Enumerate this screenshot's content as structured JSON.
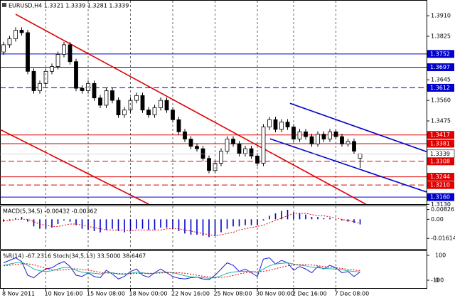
{
  "chart_data": [
    {
      "type": "candlestick",
      "title": "EURUSD,H4  1.3321 1.3339 1.3281 1.3339",
      "categories": [
        "8 Nov 2011",
        null,
        null,
        null,
        null,
        null,
        null,
        "10 Nov 16:00",
        null,
        null,
        null,
        null,
        null,
        null,
        "15 Nov 08:00",
        null,
        null,
        null,
        null,
        null,
        null,
        "18 Nov 00:00",
        null,
        null,
        null,
        null,
        null,
        null,
        "22 Nov 16:00",
        null,
        null,
        null,
        null,
        null,
        null,
        "25 Nov 08:00",
        null,
        null,
        null,
        null,
        null,
        null,
        "30 Nov 00:00",
        null,
        null,
        null,
        null,
        null,
        "2 Dec 16:00",
        null,
        null,
        null,
        null,
        null,
        null,
        "7 Dec 08:00",
        null,
        null,
        null,
        null
      ],
      "open": [
        1.376,
        1.379,
        1.3815,
        1.385,
        1.384,
        1.368,
        1.36,
        1.363,
        1.368,
        1.37,
        1.375,
        1.379,
        1.372,
        1.361,
        1.36,
        1.363,
        1.357,
        1.354,
        1.36,
        1.356,
        1.35,
        1.352,
        1.356,
        1.358,
        1.352,
        1.35,
        1.353,
        1.356,
        1.352,
        1.348,
        1.343,
        1.34,
        1.337,
        1.336,
        1.332,
        1.327,
        1.33,
        1.335,
        1.34,
        1.338,
        1.334,
        1.336,
        1.333,
        1.33,
        1.345,
        1.348,
        1.344,
        1.347,
        1.345,
        1.34,
        1.343,
        1.341,
        1.338,
        1.342,
        1.34,
        1.343,
        1.341,
        1.338,
        1.339,
        1.3321
      ],
      "high": [
        1.3802,
        1.3827,
        1.3862,
        1.3862,
        1.3852,
        1.3692,
        1.3642,
        1.3692,
        1.3712,
        1.3762,
        1.3802,
        1.3802,
        1.3732,
        1.3622,
        1.3642,
        1.3642,
        1.3582,
        1.3612,
        1.3612,
        1.3572,
        1.3532,
        1.3572,
        1.3592,
        1.3592,
        1.3532,
        1.3542,
        1.3572,
        1.3572,
        1.3532,
        1.3492,
        1.3442,
        1.3412,
        1.3382,
        1.3372,
        1.3332,
        1.3312,
        1.3362,
        1.3412,
        1.3412,
        1.3392,
        1.3372,
        1.3372,
        1.3342,
        1.3462,
        1.3492,
        1.3492,
        1.3482,
        1.3482,
        1.3462,
        1.3442,
        1.3442,
        1.3422,
        1.3432,
        1.3432,
        1.3442,
        1.3442,
        1.3422,
        1.3402,
        1.3402,
        1.3339
      ],
      "low": [
        1.3748,
        1.3778,
        1.3803,
        1.3828,
        1.3668,
        1.3588,
        1.3588,
        1.3618,
        1.3668,
        1.3688,
        1.3738,
        1.3708,
        1.3598,
        1.3588,
        1.3588,
        1.3558,
        1.3528,
        1.3528,
        1.3548,
        1.3488,
        1.3488,
        1.3508,
        1.3548,
        1.3508,
        1.3488,
        1.3488,
        1.3518,
        1.3508,
        1.3468,
        1.3418,
        1.3388,
        1.3358,
        1.3348,
        1.3308,
        1.3258,
        1.3258,
        1.3288,
        1.3338,
        1.3368,
        1.3328,
        1.3328,
        1.3318,
        1.3288,
        1.3288,
        1.3438,
        1.3428,
        1.3428,
        1.3438,
        1.3388,
        1.3388,
        1.3398,
        1.3368,
        1.3368,
        1.3388,
        1.3388,
        1.3398,
        1.3368,
        1.3368,
        1.3338,
        1.3281
      ],
      "close": [
        1.379,
        1.3815,
        1.385,
        1.384,
        1.368,
        1.36,
        1.363,
        1.368,
        1.37,
        1.375,
        1.379,
        1.372,
        1.361,
        1.36,
        1.363,
        1.357,
        1.354,
        1.36,
        1.356,
        1.35,
        1.352,
        1.356,
        1.358,
        1.352,
        1.35,
        1.353,
        1.356,
        1.352,
        1.348,
        1.343,
        1.34,
        1.337,
        1.336,
        1.332,
        1.327,
        1.33,
        1.335,
        1.34,
        1.338,
        1.334,
        1.336,
        1.333,
        1.33,
        1.345,
        1.348,
        1.344,
        1.347,
        1.345,
        1.34,
        1.343,
        1.341,
        1.338,
        1.342,
        1.34,
        1.343,
        1.341,
        1.338,
        1.339,
        1.335,
        1.3339
      ],
      "ylim": [
        1.3131,
        1.3975
      ],
      "yticks": [
        {
          "value": 1.391,
          "label": "1.3910"
        },
        1.3825,
        1.3645,
        {
          "value": 1.356,
          "label": "1.3560"
        },
        1.3475,
        {
          "value": 1.313,
          "label": "1.3130"
        }
      ],
      "levels": [
        {
          "value": 1.3752,
          "color": "#0000cc",
          "dash": false
        },
        {
          "value": 1.3697,
          "color": "#0000cc",
          "dash": false
        },
        {
          "value": 1.3612,
          "color": "#0000cc",
          "dash": true
        },
        {
          "value": 1.3417,
          "color": "#e00000",
          "dash": false
        },
        {
          "value": 1.3381,
          "color": "#e00000",
          "dash": false
        },
        {
          "value": 1.3308,
          "color": "#e00000",
          "dash": true
        },
        {
          "value": 1.3244,
          "color": "#e00000",
          "dash": false
        },
        {
          "value": 1.321,
          "label": "1.3210",
          "color": "#e00000",
          "dash": true
        },
        {
          "value": 1.316,
          "label": "1.3160",
          "color": "#0000cc",
          "dash": false
        }
      ],
      "bid": 1.3339,
      "trendlines": [
        {
          "x": [
            2,
            60
          ],
          "y": [
            1.3916,
            1.313
          ],
          "color": "#e00000"
        },
        {
          "x": [
            -1,
            24
          ],
          "y": [
            1.3445,
            1.3131
          ],
          "color": "#e00000"
        },
        {
          "x": [
            47.4,
            70
          ],
          "y": [
            1.3548,
            1.3348
          ],
          "color": "#0000cc"
        },
        {
          "x": [
            44.1,
            70
          ],
          "y": [
            1.3401,
            1.3181
          ],
          "color": "#0000cc"
        }
      ],
      "grid": true
    },
    {
      "type": "macd",
      "title": "MACD(5,34,5) -0.00432 -0.00362",
      "values": [
        -0.002,
        -0.001,
        0.001,
        0.002,
        -0.002,
        -0.006,
        -0.008,
        -0.008,
        -0.007,
        -0.004,
        -0.001,
        -0.002,
        -0.005,
        -0.008,
        -0.009,
        -0.01,
        -0.011,
        -0.009,
        -0.008,
        -0.01,
        -0.011,
        -0.01,
        -0.008,
        -0.008,
        -0.009,
        -0.009,
        -0.007,
        -0.007,
        -0.008,
        -0.01,
        -0.012,
        -0.013,
        -0.013,
        -0.014,
        -0.015,
        -0.014,
        -0.011,
        -0.008,
        -0.006,
        -0.006,
        -0.005,
        -0.005,
        -0.005,
        -0.001,
        0.003,
        0.005,
        0.007,
        0.008,
        0.006,
        0.005,
        0.004,
        0.002,
        0.002,
        0.001,
        0.001,
        0.0,
        -0.001,
        -0.002,
        -0.003,
        -0.00432
      ],
      "signal": [
        -0.001,
        -0.001,
        0.0,
        0.0,
        0.0,
        -0.002,
        -0.004,
        -0.005,
        -0.006,
        -0.006,
        -0.005,
        -0.004,
        -0.004,
        -0.005,
        -0.006,
        -0.007,
        -0.008,
        -0.009,
        -0.009,
        -0.009,
        -0.009,
        -0.01,
        -0.009,
        -0.009,
        -0.009,
        -0.009,
        -0.009,
        -0.008,
        -0.008,
        -0.008,
        -0.009,
        -0.01,
        -0.011,
        -0.012,
        -0.013,
        -0.014,
        -0.013,
        -0.012,
        -0.011,
        -0.009,
        -0.008,
        -0.007,
        -0.006,
        -0.005,
        -0.003,
        -0.001,
        0.001,
        0.003,
        0.005,
        0.005,
        0.005,
        0.004,
        0.003,
        0.003,
        0.002,
        0.001,
        0.0,
        -0.001,
        -0.002,
        -0.00362
      ],
      "color": "#0000cc",
      "signal_color": "#e00000",
      "ylim": [
        -0.025,
        0.011
      ],
      "yticks": [
        0.00826,
        {
          "value": 0,
          "label": "0.00"
        },
        -0.01614
      ]
    },
    {
      "type": "oscillator",
      "title": "%R(14) -67.2316  Stoch(34,5,13) 33.5000 38.6467",
      "series": [
        {
          "axis": "y2",
          "color": "#1c1cd0",
          "dash": false,
          "values": [
            -30,
            -20,
            -10,
            -25,
            -80,
            -90,
            -70,
            -55,
            -50,
            -35,
            -25,
            -45,
            -80,
            -85,
            -70,
            -85,
            -90,
            -60,
            -75,
            -95,
            -85,
            -65,
            -55,
            -80,
            -88,
            -70,
            -55,
            -70,
            -85,
            -92,
            -95,
            -90,
            -88,
            -95,
            -98,
            -80,
            -55,
            -30,
            -40,
            -65,
            -55,
            -70,
            -85,
            -15,
            -10,
            -35,
            -20,
            -30,
            -60,
            -45,
            -55,
            -70,
            -45,
            -55,
            -40,
            -50,
            -70,
            -65,
            -85,
            -67.2316
          ]
        },
        {
          "axis": "y",
          "color": "#20b2aa",
          "dash": false,
          "values": [
            60,
            65,
            70,
            72,
            60,
            45,
            38,
            35,
            38,
            45,
            52,
            50,
            40,
            32,
            30,
            28,
            25,
            30,
            30,
            25,
            24,
            28,
            32,
            30,
            26,
            28,
            32,
            33,
            30,
            25,
            18,
            14,
            12,
            10,
            8,
            10,
            18,
            28,
            33,
            35,
            36,
            35,
            32,
            45,
            58,
            65,
            68,
            70,
            65,
            60,
            58,
            52,
            50,
            48,
            46,
            45,
            42,
            38,
            35,
            33.5
          ]
        },
        {
          "axis": "y",
          "color": "#e00000",
          "dash": true,
          "values": [
            58,
            60,
            63,
            66,
            66,
            62,
            55,
            48,
            42,
            40,
            42,
            45,
            46,
            44,
            40,
            36,
            32,
            29,
            28,
            27,
            26,
            26,
            27,
            28,
            28,
            28,
            29,
            30,
            31,
            30,
            28,
            24,
            20,
            16,
            13,
            11,
            11,
            14,
            19,
            25,
            30,
            33,
            34,
            36,
            40,
            46,
            52,
            58,
            62,
            63,
            63,
            61,
            58,
            55,
            52,
            50,
            47,
            44,
            41,
            38.6467
          ]
        }
      ],
      "ylim": [
        0,
        100
      ],
      "yticks": [
        100,
        0
      ],
      "y2lim": [
        -100,
        0
      ],
      "y2ticks": [
        -100
      ]
    }
  ]
}
